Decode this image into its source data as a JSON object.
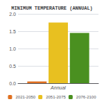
{
  "chart_data": {
    "type": "bar",
    "title": "MINIMUM TEMPERATURE (ANNUAL)",
    "categories": [
      "Annual"
    ],
    "series": [
      {
        "name": "2021-2050",
        "color": "#e07020",
        "values": [
          0.05
        ]
      },
      {
        "name": "2051-2075",
        "color": "#e8c020",
        "values": [
          1.75
        ]
      },
      {
        "name": "2076-2100",
        "color": "#4a9020",
        "values": [
          1.45
        ]
      }
    ],
    "ylim": [
      0,
      2.0
    ],
    "yticks": [
      {
        "value": 0,
        "label": "0.0"
      },
      0.5,
      {
        "value": 1.0,
        "label": "1.0"
      },
      1.5,
      {
        "value": 2.0,
        "label": "2.0"
      }
    ],
    "grid": true,
    "legend": "bottom"
  }
}
